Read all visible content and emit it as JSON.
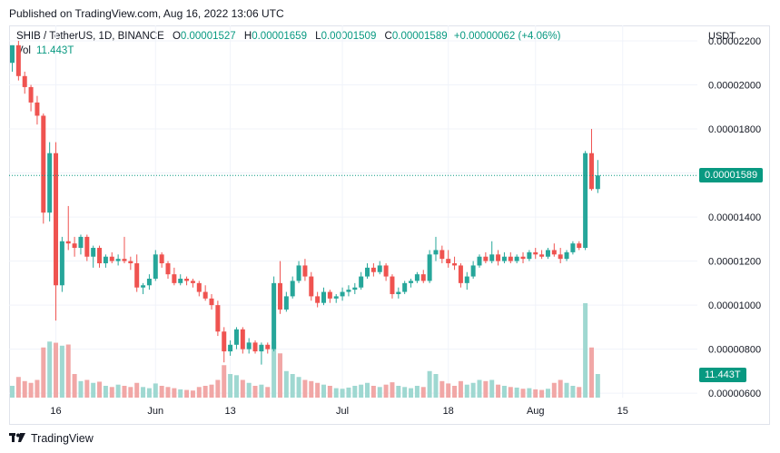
{
  "header": {
    "published": "Published on TradingView.com, Aug 16, 2022 13:06 UTC"
  },
  "legend": {
    "symbol": "SHIB / TetherUS, 1D, BINANCE",
    "o_label": "O",
    "o": "0.00001527",
    "h_label": "H",
    "h": "0.00001659",
    "l_label": "L",
    "l": "0.00001509",
    "c_label": "C",
    "c": "0.00001589",
    "change": "+0.00000062 (+4.06%)",
    "vol_label": "Vol",
    "vol": "11.443T"
  },
  "axis": {
    "currency": "USDT"
  },
  "tags": {
    "price": "0.00001589",
    "volume": "11.443T"
  },
  "footer": {
    "brand": "TradingView"
  },
  "colors": {
    "up": "#26a69a",
    "down": "#ef5350",
    "up_vol": "#9fd8d1",
    "down_vol": "#f1a7a6",
    "grid": "#f0f3fa",
    "last": "#089981"
  },
  "chart_data": {
    "type": "candlestick",
    "y_ticks": [
      "0.00002200",
      "0.00002000",
      "0.00001800",
      "0.00001600",
      "0.00001400",
      "0.00001200",
      "0.00001000",
      "0.00000800",
      "0.00000600"
    ],
    "ylim": [
      5.8e-06,
      2.27e-05
    ],
    "x_ticks": [
      {
        "label": "16",
        "index": 7
      },
      {
        "label": "Jun",
        "index": 23
      },
      {
        "label": "13",
        "index": 35
      },
      {
        "label": "Jul",
        "index": 53
      },
      {
        "label": "18",
        "index": 70
      },
      {
        "label": "Aug",
        "index": 84
      },
      {
        "label": "15",
        "index": 98
      }
    ],
    "last_price": 1.589e-05,
    "candles": [
      {
        "o": 2.1e-05,
        "h": 2.18e-05,
        "l": 2.06e-05,
        "c": 2.18e-05,
        "v": 0.2
      },
      {
        "o": 2.18e-05,
        "h": 2.2e-05,
        "l": 2.02e-05,
        "c": 2.04e-05,
        "v": 0.35
      },
      {
        "o": 2.04e-05,
        "h": 2.06e-05,
        "l": 1.96e-05,
        "c": 1.99e-05,
        "v": 0.28
      },
      {
        "o": 1.99e-05,
        "h": 2e-05,
        "l": 1.88e-05,
        "c": 1.92e-05,
        "v": 0.25
      },
      {
        "o": 1.92e-05,
        "h": 1.95e-05,
        "l": 1.82e-05,
        "c": 1.86e-05,
        "v": 0.3
      },
      {
        "o": 1.86e-05,
        "h": 1.87e-05,
        "l": 1.37e-05,
        "c": 1.42e-05,
        "v": 0.85
      },
      {
        "o": 1.42e-05,
        "h": 1.74e-05,
        "l": 1.38e-05,
        "c": 1.69e-05,
        "v": 0.95
      },
      {
        "o": 1.69e-05,
        "h": 1.74e-05,
        "l": 9.3e-06,
        "c": 1.09e-05,
        "v": 0.93
      },
      {
        "o": 1.09e-05,
        "h": 1.31e-05,
        "l": 1.06e-05,
        "c": 1.29e-05,
        "v": 0.88
      },
      {
        "o": 1.29e-05,
        "h": 1.45e-05,
        "l": 1.25e-05,
        "c": 1.28e-05,
        "v": 0.9
      },
      {
        "o": 1.28e-05,
        "h": 1.31e-05,
        "l": 1.22e-05,
        "c": 1.26e-05,
        "v": 0.4
      },
      {
        "o": 1.26e-05,
        "h": 1.32e-05,
        "l": 1.23e-05,
        "c": 1.31e-05,
        "v": 0.28
      },
      {
        "o": 1.31e-05,
        "h": 1.32e-05,
        "l": 1.2e-05,
        "c": 1.22e-05,
        "v": 0.3
      },
      {
        "o": 1.22e-05,
        "h": 1.27e-05,
        "l": 1.17e-05,
        "c": 1.26e-05,
        "v": 0.25
      },
      {
        "o": 1.26e-05,
        "h": 1.27e-05,
        "l": 1.17e-05,
        "c": 1.19e-05,
        "v": 0.27
      },
      {
        "o": 1.19e-05,
        "h": 1.23e-05,
        "l": 1.17e-05,
        "c": 1.22e-05,
        "v": 0.2
      },
      {
        "o": 1.22e-05,
        "h": 1.24e-05,
        "l": 1.19e-05,
        "c": 1.2e-05,
        "v": 0.18
      },
      {
        "o": 1.2e-05,
        "h": 1.23e-05,
        "l": 1.18e-05,
        "c": 1.21e-05,
        "v": 0.22
      },
      {
        "o": 1.21e-05,
        "h": 1.31e-05,
        "l": 1.19e-05,
        "c": 1.2e-05,
        "v": 0.2
      },
      {
        "o": 1.2e-05,
        "h": 1.22e-05,
        "l": 1.16e-05,
        "c": 1.19e-05,
        "v": 0.18
      },
      {
        "o": 1.19e-05,
        "h": 1.23e-05,
        "l": 1.06e-05,
        "c": 1.08e-05,
        "v": 0.25
      },
      {
        "o": 1.08e-05,
        "h": 1.1e-05,
        "l": 1.05e-05,
        "c": 1.09e-05,
        "v": 0.18
      },
      {
        "o": 1.09e-05,
        "h": 1.14e-05,
        "l": 1.07e-05,
        "c": 1.12e-05,
        "v": 0.16
      },
      {
        "o": 1.12e-05,
        "h": 1.25e-05,
        "l": 1.11e-05,
        "c": 1.23e-05,
        "v": 0.24
      },
      {
        "o": 1.23e-05,
        "h": 1.24e-05,
        "l": 1.17e-05,
        "c": 1.19e-05,
        "v": 0.2
      },
      {
        "o": 1.19e-05,
        "h": 1.2e-05,
        "l": 1.12e-05,
        "c": 1.14e-05,
        "v": 0.18
      },
      {
        "o": 1.14e-05,
        "h": 1.17e-05,
        "l": 1.09e-05,
        "c": 1.1e-05,
        "v": 0.16
      },
      {
        "o": 1.1e-05,
        "h": 1.14e-05,
        "l": 1.09e-05,
        "c": 1.12e-05,
        "v": 0.14
      },
      {
        "o": 1.12e-05,
        "h": 1.13e-05,
        "l": 1.09e-05,
        "c": 1.11e-05,
        "v": 0.13
      },
      {
        "o": 1.11e-05,
        "h": 1.12e-05,
        "l": 1.08e-05,
        "c": 1.1e-05,
        "v": 0.12
      },
      {
        "o": 1.1e-05,
        "h": 1.11e-05,
        "l": 1.04e-05,
        "c": 1.06e-05,
        "v": 0.18
      },
      {
        "o": 1.06e-05,
        "h": 1.09e-05,
        "l": 1.02e-05,
        "c": 1.03e-05,
        "v": 0.2
      },
      {
        "o": 1.03e-05,
        "h": 1.05e-05,
        "l": 9.8e-06,
        "c": 1e-05,
        "v": 0.22
      },
      {
        "o": 1e-05,
        "h": 1.02e-05,
        "l": 8.6e-06,
        "c": 8.8e-06,
        "v": 0.3
      },
      {
        "o": 8.8e-06,
        "h": 9e-06,
        "l": 7.4e-06,
        "c": 7.9e-06,
        "v": 0.55
      },
      {
        "o": 7.9e-06,
        "h": 8.4e-06,
        "l": 7.7e-06,
        "c": 8.2e-06,
        "v": 0.4
      },
      {
        "o": 8.2e-06,
        "h": 9e-06,
        "l": 8e-06,
        "c": 8.9e-06,
        "v": 0.38
      },
      {
        "o": 8.9e-06,
        "h": 9e-06,
        "l": 7.8e-06,
        "c": 8e-06,
        "v": 0.3
      },
      {
        "o": 8e-06,
        "h": 8.5e-06,
        "l": 7.8e-06,
        "c": 8.3e-06,
        "v": 0.25
      },
      {
        "o": 8.3e-06,
        "h": 8.4e-06,
        "l": 7.8e-06,
        "c": 7.9e-06,
        "v": 0.2
      },
      {
        "o": 7.9e-06,
        "h": 8.3e-06,
        "l": 7.3e-06,
        "c": 8.2e-06,
        "v": 0.22
      },
      {
        "o": 8.2e-06,
        "h": 8.3e-06,
        "l": 7.8e-06,
        "c": 8e-06,
        "v": 0.18
      },
      {
        "o": 8e-06,
        "h": 1.13e-05,
        "l": 7.9e-06,
        "c": 1.1e-05,
        "v": 0.95
      },
      {
        "o": 1.1e-05,
        "h": 1.2e-05,
        "l": 9.6e-06,
        "c": 9.8e-06,
        "v": 0.75
      },
      {
        "o": 9.8e-06,
        "h": 1.06e-05,
        "l": 9.7e-06,
        "c": 1.04e-05,
        "v": 0.45
      },
      {
        "o": 1.04e-05,
        "h": 1.13e-05,
        "l": 1.03e-05,
        "c": 1.11e-05,
        "v": 0.4
      },
      {
        "o": 1.11e-05,
        "h": 1.2e-05,
        "l": 1.1e-05,
        "c": 1.18e-05,
        "v": 0.35
      },
      {
        "o": 1.18e-05,
        "h": 1.21e-05,
        "l": 1.11e-05,
        "c": 1.13e-05,
        "v": 0.3
      },
      {
        "o": 1.13e-05,
        "h": 1.15e-05,
        "l": 1.02e-05,
        "c": 1.04e-05,
        "v": 0.28
      },
      {
        "o": 1.04e-05,
        "h": 1.06e-05,
        "l": 9.9e-06,
        "c": 1.01e-05,
        "v": 0.25
      },
      {
        "o": 1.01e-05,
        "h": 1.08e-05,
        "l": 1e-05,
        "c": 1.06e-05,
        "v": 0.22
      },
      {
        "o": 1.06e-05,
        "h": 1.07e-05,
        "l": 1.01e-05,
        "c": 1.03e-05,
        "v": 0.2
      },
      {
        "o": 1.03e-05,
        "h": 1.05e-05,
        "l": 1.01e-05,
        "c": 1.04e-05,
        "v": 0.16
      },
      {
        "o": 1.04e-05,
        "h": 1.08e-05,
        "l": 1.02e-05,
        "c": 1.06e-05,
        "v": 0.15
      },
      {
        "o": 1.06e-05,
        "h": 1.09e-05,
        "l": 1.04e-05,
        "c": 1.07e-05,
        "v": 0.17
      },
      {
        "o": 1.07e-05,
        "h": 1.1e-05,
        "l": 1.05e-05,
        "c": 1.08e-05,
        "v": 0.2
      },
      {
        "o": 1.08e-05,
        "h": 1.15e-05,
        "l": 1.07e-05,
        "c": 1.13e-05,
        "v": 0.22
      },
      {
        "o": 1.13e-05,
        "h": 1.19e-05,
        "l": 1.12e-05,
        "c": 1.17e-05,
        "v": 0.25
      },
      {
        "o": 1.17e-05,
        "h": 1.19e-05,
        "l": 1.13e-05,
        "c": 1.15e-05,
        "v": 0.2
      },
      {
        "o": 1.15e-05,
        "h": 1.2e-05,
        "l": 1.14e-05,
        "c": 1.18e-05,
        "v": 0.18
      },
      {
        "o": 1.18e-05,
        "h": 1.19e-05,
        "l": 1.11e-05,
        "c": 1.13e-05,
        "v": 0.22
      },
      {
        "o": 1.13e-05,
        "h": 1.14e-05,
        "l": 1.03e-05,
        "c": 1.05e-05,
        "v": 0.26
      },
      {
        "o": 1.05e-05,
        "h": 1.08e-05,
        "l": 1.03e-05,
        "c": 1.06e-05,
        "v": 0.2
      },
      {
        "o": 1.06e-05,
        "h": 1.11e-05,
        "l": 1.05e-05,
        "c": 1.1e-05,
        "v": 0.18
      },
      {
        "o": 1.1e-05,
        "h": 1.12e-05,
        "l": 1.08e-05,
        "c": 1.11e-05,
        "v": 0.16
      },
      {
        "o": 1.11e-05,
        "h": 1.15e-05,
        "l": 1.1e-05,
        "c": 1.14e-05,
        "v": 0.2
      },
      {
        "o": 1.14e-05,
        "h": 1.16e-05,
        "l": 1.1e-05,
        "c": 1.11e-05,
        "v": 0.18
      },
      {
        "o": 1.11e-05,
        "h": 1.25e-05,
        "l": 1.1e-05,
        "c": 1.23e-05,
        "v": 0.45
      },
      {
        "o": 1.23e-05,
        "h": 1.31e-05,
        "l": 1.2e-05,
        "c": 1.25e-05,
        "v": 0.4
      },
      {
        "o": 1.25e-05,
        "h": 1.27e-05,
        "l": 1.19e-05,
        "c": 1.21e-05,
        "v": 0.28
      },
      {
        "o": 1.21e-05,
        "h": 1.25e-05,
        "l": 1.17e-05,
        "c": 1.19e-05,
        "v": 0.24
      },
      {
        "o": 1.19e-05,
        "h": 1.22e-05,
        "l": 1.16e-05,
        "c": 1.18e-05,
        "v": 0.2
      },
      {
        "o": 1.18e-05,
        "h": 1.19e-05,
        "l": 1.08e-05,
        "c": 1.1e-05,
        "v": 0.28
      },
      {
        "o": 1.1e-05,
        "h": 1.15e-05,
        "l": 1.07e-05,
        "c": 1.13e-05,
        "v": 0.22
      },
      {
        "o": 1.13e-05,
        "h": 1.2e-05,
        "l": 1.12e-05,
        "c": 1.18e-05,
        "v": 0.25
      },
      {
        "o": 1.18e-05,
        "h": 1.23e-05,
        "l": 1.17e-05,
        "c": 1.22e-05,
        "v": 0.3
      },
      {
        "o": 1.22e-05,
        "h": 1.24e-05,
        "l": 1.19e-05,
        "c": 1.2e-05,
        "v": 0.28
      },
      {
        "o": 1.2e-05,
        "h": 1.29e-05,
        "l": 1.19e-05,
        "c": 1.23e-05,
        "v": 0.3
      },
      {
        "o": 1.23e-05,
        "h": 1.25e-05,
        "l": 1.18e-05,
        "c": 1.2e-05,
        "v": 0.22
      },
      {
        "o": 1.2e-05,
        "h": 1.24e-05,
        "l": 1.19e-05,
        "c": 1.22e-05,
        "v": 0.2
      },
      {
        "o": 1.22e-05,
        "h": 1.24e-05,
        "l": 1.19e-05,
        "c": 1.2e-05,
        "v": 0.18
      },
      {
        "o": 1.2e-05,
        "h": 1.23e-05,
        "l": 1.19e-05,
        "c": 1.22e-05,
        "v": 0.17
      },
      {
        "o": 1.22e-05,
        "h": 1.24e-05,
        "l": 1.19e-05,
        "c": 1.21e-05,
        "v": 0.15
      },
      {
        "o": 1.21e-05,
        "h": 1.25e-05,
        "l": 1.2e-05,
        "c": 1.24e-05,
        "v": 0.16
      },
      {
        "o": 1.24e-05,
        "h": 1.26e-05,
        "l": 1.21e-05,
        "c": 1.23e-05,
        "v": 0.14
      },
      {
        "o": 1.23e-05,
        "h": 1.25e-05,
        "l": 1.21e-05,
        "c": 1.22e-05,
        "v": 0.13
      },
      {
        "o": 1.22e-05,
        "h": 1.26e-05,
        "l": 1.21e-05,
        "c": 1.25e-05,
        "v": 0.15
      },
      {
        "o": 1.25e-05,
        "h": 1.28e-05,
        "l": 1.22e-05,
        "c": 1.23e-05,
        "v": 0.25
      },
      {
        "o": 1.23e-05,
        "h": 1.26e-05,
        "l": 1.19e-05,
        "c": 1.21e-05,
        "v": 0.3
      },
      {
        "o": 1.21e-05,
        "h": 1.25e-05,
        "l": 1.2e-05,
        "c": 1.24e-05,
        "v": 0.25
      },
      {
        "o": 1.24e-05,
        "h": 1.29e-05,
        "l": 1.23e-05,
        "c": 1.28e-05,
        "v": 0.2
      },
      {
        "o": 1.28e-05,
        "h": 1.29e-05,
        "l": 1.25e-05,
        "c": 1.26e-05,
        "v": 0.18
      },
      {
        "o": 1.26e-05,
        "h": 1.7e-05,
        "l": 1.25e-05,
        "c": 1.69e-05,
        "v": 1.6
      },
      {
        "o": 1.69e-05,
        "h": 1.8e-05,
        "l": 1.52e-05,
        "c": 1.527e-05,
        "v": 0.85
      },
      {
        "o": 1.527e-05,
        "h": 1.659e-05,
        "l": 1.509e-05,
        "c": 1.589e-05,
        "v": 0.4
      }
    ]
  }
}
